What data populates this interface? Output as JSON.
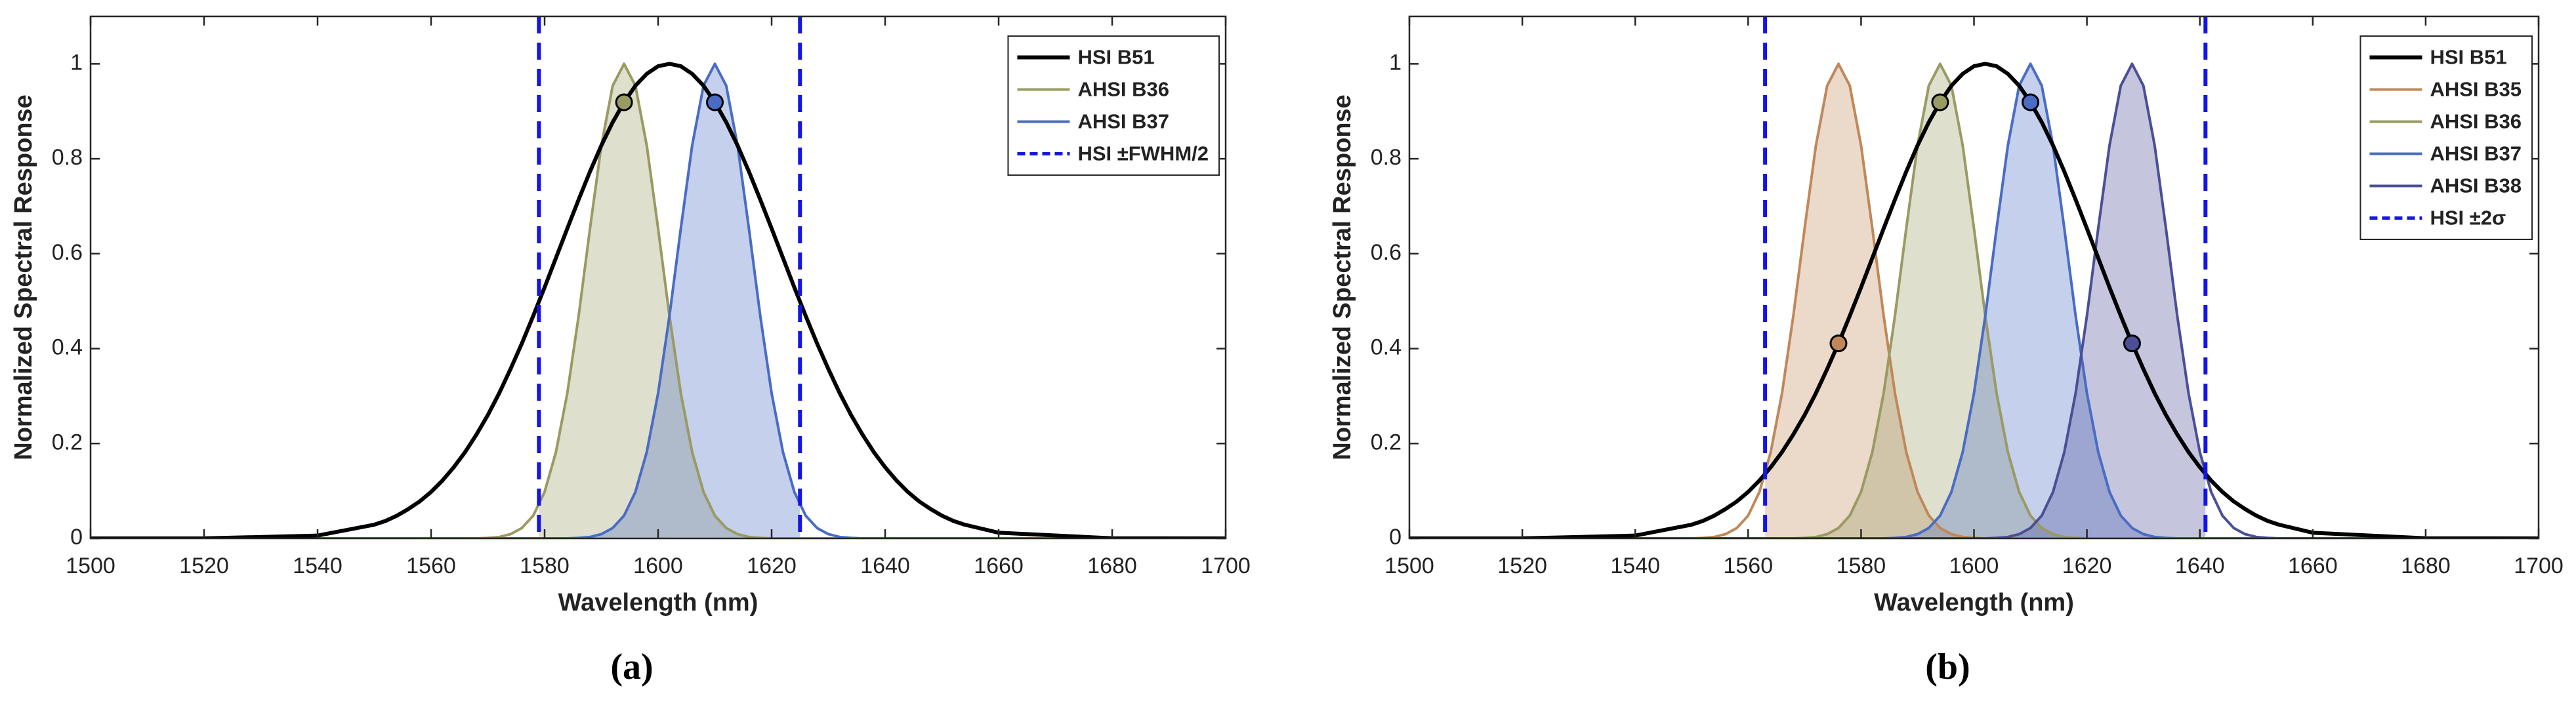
{
  "chart_data": [
    {
      "type": "line",
      "caption": "(a)",
      "xlabel": "Wavelength (nm)",
      "ylabel": "Normalized Spectral Response",
      "xlim": [
        1500,
        1700
      ],
      "xticks": [
        1500,
        1520,
        1540,
        1560,
        1580,
        1600,
        1620,
        1640,
        1660,
        1680,
        1700
      ],
      "ylim": [
        0,
        1.1
      ],
      "yticks": [
        0,
        0.2,
        0.4,
        0.6,
        0.8,
        1
      ],
      "legend": "upper right",
      "x": [
        1500,
        1520,
        1540,
        1550,
        1552,
        1554,
        1556,
        1558,
        1560,
        1562,
        1564,
        1566,
        1568,
        1570,
        1572,
        1574,
        1576,
        1578,
        1580,
        1582,
        1584,
        1586,
        1588,
        1590,
        1592,
        1594,
        1596,
        1598,
        1600,
        1602,
        1604,
        1606,
        1608,
        1610,
        1612,
        1614,
        1616,
        1618,
        1620,
        1622,
        1624,
        1626,
        1628,
        1630,
        1632,
        1634,
        1636,
        1638,
        1640,
        1642,
        1644,
        1646,
        1648,
        1650,
        1652,
        1654,
        1660,
        1680,
        1700
      ],
      "series": [
        {
          "name": "HSI B51",
          "color": "#000000",
          "values": [
            0,
            0.0001,
            0.006,
            0.029,
            0.037,
            0.048,
            0.062,
            0.078,
            0.098,
            0.122,
            0.15,
            0.182,
            0.219,
            0.26,
            0.306,
            0.357,
            0.411,
            0.469,
            0.529,
            0.591,
            0.653,
            0.714,
            0.773,
            0.828,
            0.877,
            0.919,
            0.954,
            0.979,
            0.995,
            1,
            0.995,
            0.979,
            0.954,
            0.919,
            0.877,
            0.828,
            0.773,
            0.714,
            0.653,
            0.591,
            0.529,
            0.469,
            0.411,
            0.357,
            0.306,
            0.26,
            0.219,
            0.182,
            0.15,
            0.122,
            0.098,
            0.078,
            0.062,
            0.048,
            0.037,
            0.029,
            0.012,
            0.0003,
            0
          ]
        },
        {
          "name": "AHSI B36",
          "color": "#9a9a63",
          "fill": true,
          "marker": {
            "x": 1594,
            "y": 0.919
          },
          "values": [
            0,
            0,
            0,
            0,
            0,
            0,
            0,
            0,
            0,
            0,
            0,
            0,
            0,
            0.001,
            0.003,
            0.009,
            0.022,
            0.048,
            0.098,
            0.182,
            0.306,
            0.469,
            0.653,
            0.828,
            0.954,
            1,
            0.954,
            0.828,
            0.653,
            0.469,
            0.306,
            0.182,
            0.098,
            0.048,
            0.022,
            0.009,
            0.003,
            0.001,
            0,
            0,
            0,
            0,
            0,
            0,
            0,
            0,
            0,
            0,
            0,
            0,
            0,
            0,
            0,
            0,
            0,
            0,
            0,
            0,
            0
          ]
        },
        {
          "name": "AHSI B37",
          "color": "#4a6cc4",
          "fill": true,
          "marker": {
            "x": 1610,
            "y": 0.919
          },
          "values": [
            0,
            0,
            0,
            0,
            0,
            0,
            0,
            0,
            0,
            0,
            0,
            0,
            0,
            0,
            0,
            0,
            0,
            0,
            0,
            0,
            0,
            0.001,
            0.003,
            0.009,
            0.022,
            0.048,
            0.098,
            0.182,
            0.306,
            0.469,
            0.653,
            0.828,
            0.954,
            1,
            0.954,
            0.828,
            0.653,
            0.469,
            0.306,
            0.182,
            0.098,
            0.048,
            0.022,
            0.009,
            0.003,
            0.001,
            0,
            0,
            0,
            0,
            0,
            0,
            0,
            0,
            0,
            0,
            0,
            0,
            0
          ]
        }
      ],
      "vlines": {
        "name": "HSI ±FWHM/2",
        "color": "#1414e6",
        "x": [
          1579,
          1625
        ]
      }
    },
    {
      "type": "line",
      "caption": "(b)",
      "xlabel": "Wavelength (nm)",
      "ylabel": "Normalized Spectral Response",
      "xlim": [
        1500,
        1700
      ],
      "xticks": [
        1500,
        1520,
        1540,
        1560,
        1580,
        1600,
        1620,
        1640,
        1660,
        1680,
        1700
      ],
      "ylim": [
        0,
        1.1
      ],
      "yticks": [
        0,
        0.2,
        0.4,
        0.6,
        0.8,
        1
      ],
      "legend": "upper right",
      "x": [
        1500,
        1520,
        1540,
        1550,
        1552,
        1554,
        1556,
        1558,
        1560,
        1562,
        1564,
        1566,
        1568,
        1570,
        1572,
        1574,
        1576,
        1578,
        1580,
        1582,
        1584,
        1586,
        1588,
        1590,
        1592,
        1594,
        1596,
        1598,
        1600,
        1602,
        1604,
        1606,
        1608,
        1610,
        1612,
        1614,
        1616,
        1618,
        1620,
        1622,
        1624,
        1626,
        1628,
        1630,
        1632,
        1634,
        1636,
        1638,
        1640,
        1642,
        1644,
        1646,
        1648,
        1650,
        1652,
        1654,
        1660,
        1680,
        1700
      ],
      "series": [
        {
          "name": "HSI B51",
          "color": "#000000",
          "values": [
            0,
            0.0001,
            0.006,
            0.029,
            0.037,
            0.048,
            0.062,
            0.078,
            0.098,
            0.122,
            0.15,
            0.182,
            0.219,
            0.26,
            0.306,
            0.357,
            0.411,
            0.469,
            0.529,
            0.591,
            0.653,
            0.714,
            0.773,
            0.828,
            0.877,
            0.919,
            0.954,
            0.979,
            0.995,
            1,
            0.995,
            0.979,
            0.954,
            0.919,
            0.877,
            0.828,
            0.773,
            0.714,
            0.653,
            0.591,
            0.529,
            0.469,
            0.411,
            0.357,
            0.306,
            0.26,
            0.219,
            0.182,
            0.15,
            0.122,
            0.098,
            0.078,
            0.062,
            0.048,
            0.037,
            0.029,
            0.012,
            0.0003,
            0
          ]
        },
        {
          "name": "AHSI B35",
          "color": "#c0885a",
          "fill": true,
          "marker": {
            "x": 1576,
            "y": 0.411
          },
          "values": [
            0,
            0,
            0,
            0,
            0.001,
            0.003,
            0.009,
            0.022,
            0.048,
            0.098,
            0.182,
            0.306,
            0.469,
            0.653,
            0.828,
            0.954,
            1,
            0.954,
            0.828,
            0.653,
            0.469,
            0.306,
            0.182,
            0.098,
            0.048,
            0.022,
            0.009,
            0.003,
            0.001,
            0,
            0,
            0,
            0,
            0,
            0,
            0,
            0,
            0,
            0,
            0,
            0,
            0,
            0,
            0,
            0,
            0,
            0,
            0,
            0,
            0,
            0,
            0,
            0,
            0,
            0,
            0,
            0,
            0,
            0
          ]
        },
        {
          "name": "AHSI B36",
          "color": "#9a9a63",
          "fill": true,
          "marker": {
            "x": 1594,
            "y": 0.919
          },
          "values": [
            0,
            0,
            0,
            0,
            0,
            0,
            0,
            0,
            0,
            0,
            0,
            0,
            0,
            0.001,
            0.003,
            0.009,
            0.022,
            0.048,
            0.098,
            0.182,
            0.306,
            0.469,
            0.653,
            0.828,
            0.954,
            1,
            0.954,
            0.828,
            0.653,
            0.469,
            0.306,
            0.182,
            0.098,
            0.048,
            0.022,
            0.009,
            0.003,
            0.001,
            0,
            0,
            0,
            0,
            0,
            0,
            0,
            0,
            0,
            0,
            0,
            0,
            0,
            0,
            0,
            0,
            0,
            0,
            0,
            0,
            0
          ]
        },
        {
          "name": "AHSI B37",
          "color": "#4a6cc4",
          "fill": true,
          "marker": {
            "x": 1610,
            "y": 0.919
          },
          "values": [
            0,
            0,
            0,
            0,
            0,
            0,
            0,
            0,
            0,
            0,
            0,
            0,
            0,
            0,
            0,
            0,
            0,
            0,
            0,
            0,
            0,
            0.001,
            0.003,
            0.009,
            0.022,
            0.048,
            0.098,
            0.182,
            0.306,
            0.469,
            0.653,
            0.828,
            0.954,
            1,
            0.954,
            0.828,
            0.653,
            0.469,
            0.306,
            0.182,
            0.098,
            0.048,
            0.022,
            0.009,
            0.003,
            0.001,
            0,
            0,
            0,
            0,
            0,
            0,
            0,
            0,
            0,
            0,
            0,
            0,
            0
          ]
        },
        {
          "name": "AHSI B38",
          "color": "#4b4f96",
          "fill": true,
          "marker": {
            "x": 1628,
            "y": 0.411
          },
          "values": [
            0,
            0,
            0,
            0,
            0,
            0,
            0,
            0,
            0,
            0,
            0,
            0,
            0,
            0,
            0,
            0,
            0,
            0,
            0,
            0,
            0,
            0,
            0,
            0,
            0,
            0,
            0,
            0,
            0,
            0,
            0.001,
            0.003,
            0.009,
            0.022,
            0.048,
            0.098,
            0.182,
            0.306,
            0.469,
            0.653,
            0.828,
            0.954,
            1,
            0.954,
            0.828,
            0.653,
            0.469,
            0.306,
            0.182,
            0.098,
            0.048,
            0.022,
            0.009,
            0.003,
            0.001,
            0,
            0,
            0,
            0
          ]
        }
      ],
      "vlines": {
        "name": "HSI ±2σ",
        "color": "#1414e6",
        "x": [
          1563,
          1641
        ]
      }
    }
  ]
}
